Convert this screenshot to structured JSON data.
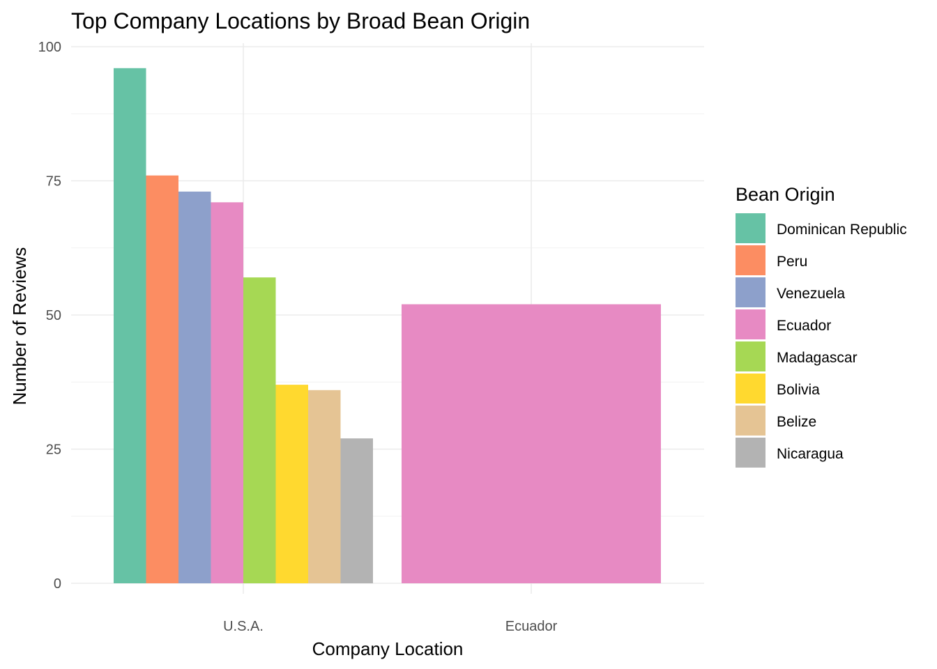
{
  "chart_data": {
    "type": "bar",
    "title": "Top Company Locations by Broad Bean Origin",
    "xlabel": "Company Location",
    "ylabel": "Number of Reviews",
    "ylim": [
      0,
      100
    ],
    "yticks": [
      0,
      25,
      50,
      75,
      100
    ],
    "categories": [
      "U.S.A.",
      "Ecuador"
    ],
    "grid": true,
    "legend": {
      "title": "Bean Origin",
      "position": "right"
    },
    "series": [
      {
        "name": "Dominican Republic",
        "color": "#66c2a5",
        "values": [
          96,
          null
        ]
      },
      {
        "name": "Peru",
        "color": "#fc8d62",
        "values": [
          76,
          null
        ]
      },
      {
        "name": "Venezuela",
        "color": "#8da0cb",
        "values": [
          73,
          null
        ]
      },
      {
        "name": "Ecuador",
        "color": "#e78ac3",
        "values": [
          71,
          52
        ]
      },
      {
        "name": "Madagascar",
        "color": "#a6d854",
        "values": [
          57,
          null
        ]
      },
      {
        "name": "Bolivia",
        "color": "#ffd92f",
        "values": [
          37,
          null
        ]
      },
      {
        "name": "Belize",
        "color": "#e5c494",
        "values": [
          36,
          null
        ]
      },
      {
        "name": "Nicaragua",
        "color": "#b3b3b3",
        "values": [
          27,
          null
        ]
      }
    ]
  }
}
